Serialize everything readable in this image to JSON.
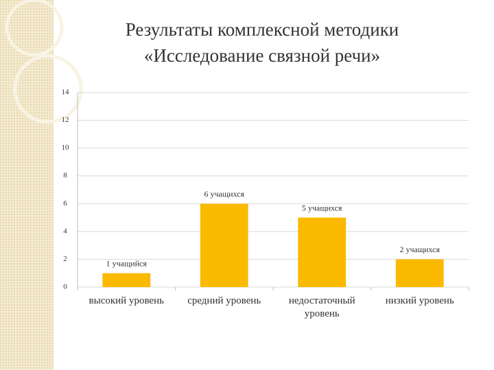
{
  "chart_data": {
    "type": "bar",
    "title": [
      "Результаты комплексной методики",
      "«Исследование связной речи»"
    ],
    "categories": [
      "высокий уровень",
      "средний уровень",
      "недостаточный уровень",
      "низкий уровень"
    ],
    "values": [
      1,
      6,
      5,
      2
    ],
    "value_labels": [
      "1 учащийся",
      "6 учащихся",
      "5 учащихся",
      "2 учащихся"
    ],
    "color": "#fbb900",
    "ylim": [
      0,
      14
    ],
    "yticks": [
      0,
      2,
      4,
      6,
      8,
      10,
      12,
      14
    ],
    "grid": true
  }
}
